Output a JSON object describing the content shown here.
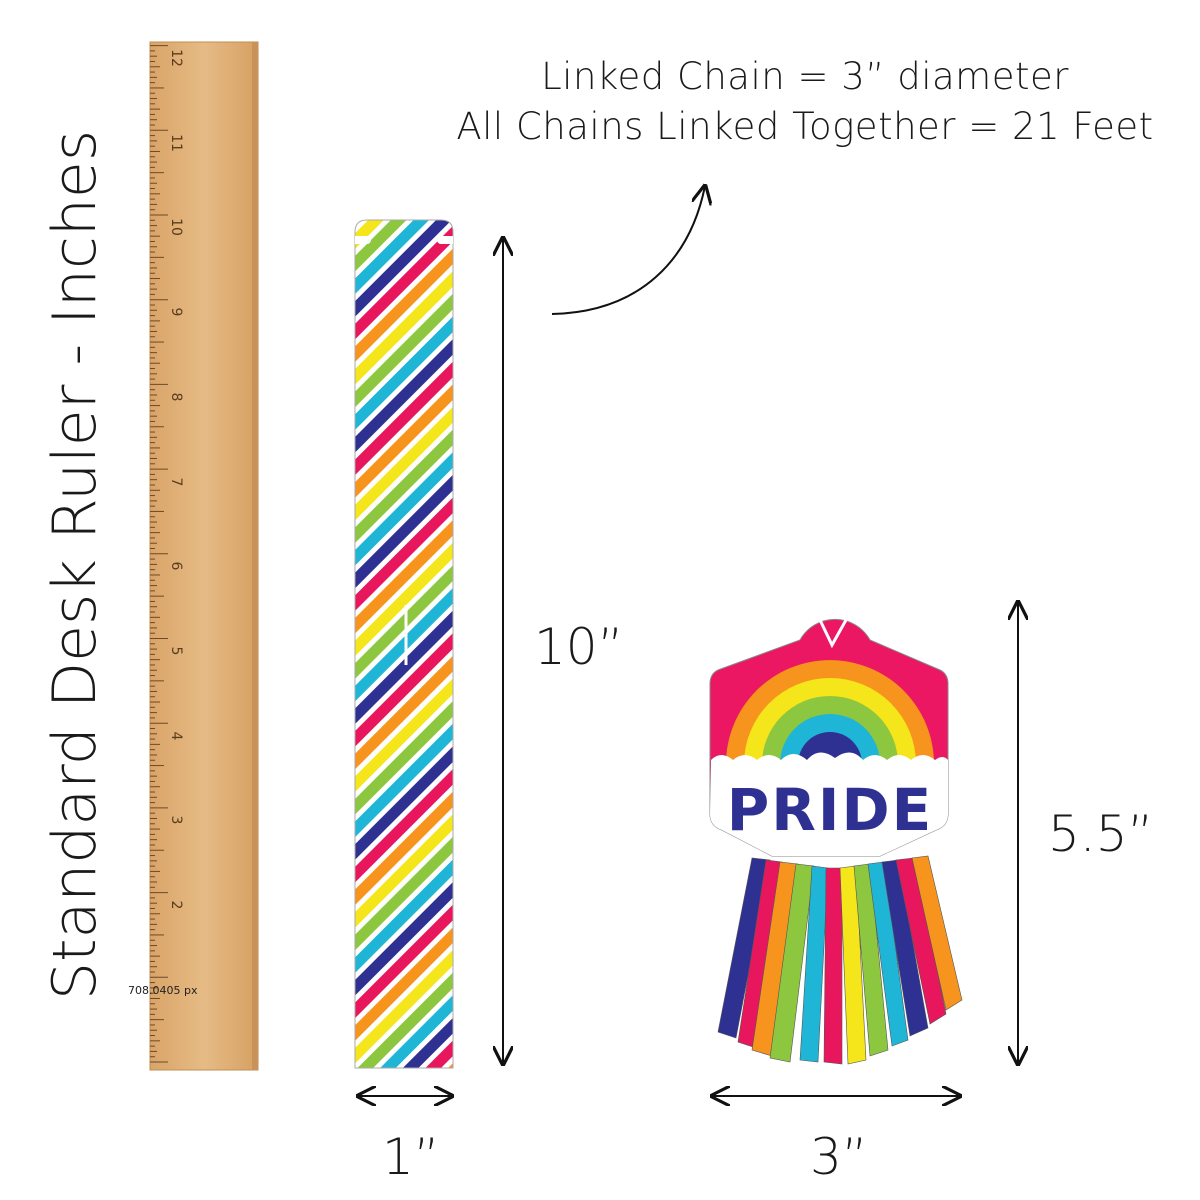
{
  "header": {
    "line1": "Linked Chain = 3” diameter",
    "line2": "All Chains Linked Together = 21 Feet"
  },
  "ruler": {
    "label": "Standard Desk Ruler - Inches",
    "numbers": [
      "2",
      "3",
      "4",
      "5",
      "6",
      "7",
      "8",
      "9",
      "10",
      "11",
      "12"
    ],
    "measurement_note": "708.0405 px",
    "color": "#e0b27a"
  },
  "strip": {
    "height_label": "10”",
    "width_label": "1”",
    "stripe_colors": [
      "#e8175d",
      "#f7941d",
      "#f5e51b",
      "#8dc63f",
      "#1fb5d6",
      "#2e3192"
    ]
  },
  "tag": {
    "text": "PRIDE",
    "height_label": "5.5”",
    "width_label": "3”",
    "colors": {
      "top": "#ec1763",
      "text": "#2e3192"
    }
  }
}
